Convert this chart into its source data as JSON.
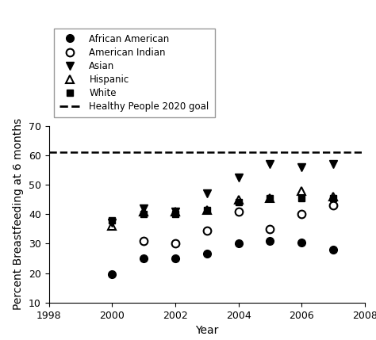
{
  "title": "",
  "xlabel": "Year",
  "ylabel": "Percent Breastfeeding at 6 months",
  "xlim": [
    1998,
    2008
  ],
  "ylim": [
    10,
    70
  ],
  "xticks": [
    1998,
    2000,
    2002,
    2004,
    2006,
    2008
  ],
  "yticks": [
    10,
    20,
    30,
    40,
    50,
    60,
    70
  ],
  "healthy_people_goal": 61,
  "series": {
    "African American": {
      "years": [
        2000,
        2001,
        2002,
        2003,
        2004,
        2005,
        2006,
        2007
      ],
      "values": [
        19.5,
        25,
        25,
        26.5,
        30,
        31,
        30.5,
        28
      ],
      "marker": "o",
      "fillstyle": "full",
      "color": "black",
      "markersize": 7
    },
    "American Indian": {
      "years": [
        2001,
        2002,
        2003,
        2004,
        2005,
        2006,
        2007
      ],
      "values": [
        31,
        30,
        34.5,
        41,
        35,
        40,
        43
      ],
      "marker": "o",
      "fillstyle": "none",
      "color": "black",
      "markersize": 7
    },
    "Asian": {
      "years": [
        2000,
        2001,
        2002,
        2003,
        2004,
        2005,
        2006,
        2007
      ],
      "values": [
        37,
        42,
        41,
        47,
        52.5,
        57,
        56,
        57
      ],
      "marker": "v",
      "fillstyle": "full",
      "color": "black",
      "markersize": 7
    },
    "Hispanic": {
      "years": [
        2000,
        2001,
        2002,
        2003,
        2004,
        2005,
        2006,
        2007
      ],
      "values": [
        36,
        41,
        41,
        41.5,
        45,
        45.5,
        48,
        46
      ],
      "marker": "^",
      "fillstyle": "none",
      "color": "black",
      "markersize": 7
    },
    "White": {
      "years": [
        2000,
        2001,
        2002,
        2003,
        2004,
        2005,
        2006,
        2007
      ],
      "values": [
        38,
        40,
        40,
        41.5,
        44,
        45.5,
        45.5,
        45.5
      ],
      "marker": "s",
      "fillstyle": "full",
      "color": "black",
      "markersize": 6
    }
  },
  "legend_fontsize": 8.5,
  "axis_fontsize": 10,
  "tick_fontsize": 9,
  "background_color": "#ffffff"
}
